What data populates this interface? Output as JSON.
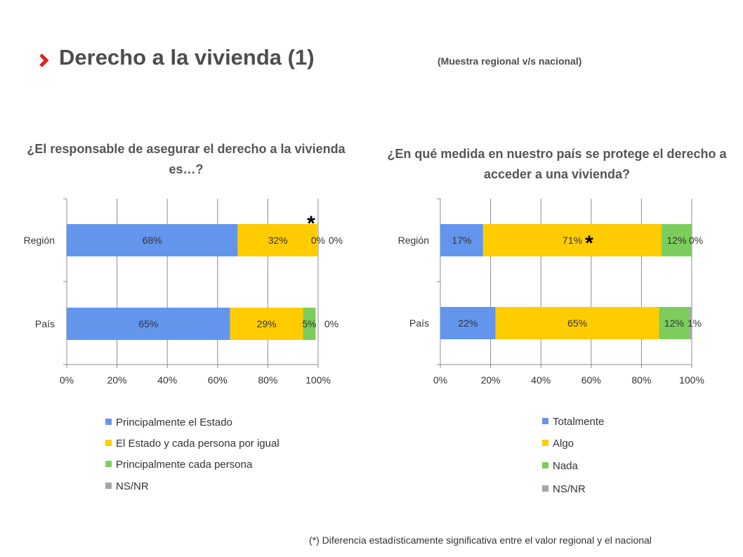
{
  "header": {
    "title": "Derecho a la vivienda (1)",
    "subtitle": "(Muestra regional v/s nacional)"
  },
  "footnote": "(*) Diferencia estadísticamente significativa entre el valor regional y el nacional",
  "colors": {
    "accent": "#d9261c",
    "blue": "#6495ed",
    "yellow": "#ffcc00",
    "green": "#7ccd5c",
    "gray": "#a6a6a6"
  },
  "chart_data": [
    {
      "type": "bar",
      "orientation": "horizontal",
      "stacked": true,
      "title": "¿El responsable de asegurar el derecho a la vivienda es…?",
      "categories": [
        "Región",
        "País"
      ],
      "xlim": [
        0,
        100
      ],
      "x_ticks": [
        "0%",
        "20%",
        "40%",
        "60%",
        "80%",
        "100%"
      ],
      "grid": true,
      "legend_position": "bottom",
      "series": [
        {
          "name": "Principalmente el Estado",
          "color": "#6495ed",
          "values": [
            68,
            65
          ],
          "labels": [
            "68%",
            "65%"
          ]
        },
        {
          "name": "El Estado y cada persona por igual",
          "color": "#ffcc00",
          "values": [
            32,
            29
          ],
          "labels": [
            "32%",
            "29%"
          ]
        },
        {
          "name": "Principalmente cada persona",
          "color": "#7ccd5c",
          "values": [
            0,
            5
          ],
          "labels": [
            "0%",
            "5%"
          ]
        },
        {
          "name": "NS/NR",
          "color": "#a6a6a6",
          "values": [
            0,
            0
          ],
          "labels": [
            "0%",
            "0%"
          ]
        }
      ],
      "annotations": [
        {
          "text": "*",
          "category": "Región"
        }
      ]
    },
    {
      "type": "bar",
      "orientation": "horizontal",
      "stacked": true,
      "title": "¿En qué medida en nuestro país se protege el derecho a acceder a una vivienda?",
      "categories": [
        "Región",
        "País"
      ],
      "xlim": [
        0,
        100
      ],
      "x_ticks": [
        "0%",
        "20%",
        "40%",
        "60%",
        "80%",
        "100%"
      ],
      "grid": true,
      "legend_position": "bottom",
      "series": [
        {
          "name": "Totalmente",
          "color": "#6495ed",
          "values": [
            17,
            22
          ],
          "labels": [
            "17%",
            "22%"
          ]
        },
        {
          "name": "Algo",
          "color": "#ffcc00",
          "values": [
            71,
            65
          ],
          "labels": [
            "71%",
            "65%"
          ]
        },
        {
          "name": "Nada",
          "color": "#7ccd5c",
          "values": [
            12,
            12
          ],
          "labels": [
            "12%",
            "12%"
          ]
        },
        {
          "name": "NS/NR",
          "color": "#a6a6a6",
          "values": [
            0,
            1
          ],
          "labels": [
            "0%",
            "1%"
          ]
        }
      ],
      "annotations": [
        {
          "text": "*",
          "category": "Región"
        }
      ]
    }
  ]
}
